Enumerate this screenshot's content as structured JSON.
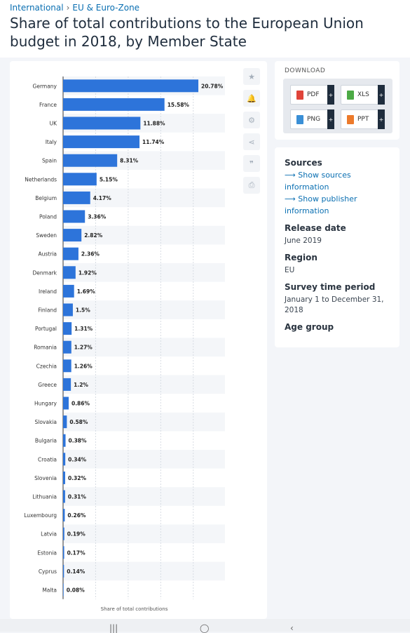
{
  "breadcrumb": {
    "parent": "International",
    "child": "EU & Euro-Zone",
    "separator": "›"
  },
  "title": "Share of total contributions to the European Union budget in 2018, by Member State",
  "chart_data": {
    "type": "bar",
    "orientation": "horizontal",
    "xlabel": "Share of total contributions",
    "grid": true,
    "bar_color": "#2d74da",
    "categories": [
      "Germany",
      "France",
      "UK",
      "Italy",
      "Spain",
      "Netherlands",
      "Belgium",
      "Poland",
      "Sweden",
      "Austria",
      "Denmark",
      "Ireland",
      "Finland",
      "Portugal",
      "Romania",
      "Czechia",
      "Greece",
      "Hungary",
      "Slovakia",
      "Bulgaria",
      "Croatia",
      "Slovenia",
      "Lithuania",
      "Luxembourg",
      "Latvia",
      "Estonia",
      "Cyprus",
      "Malta"
    ],
    "values": [
      20.78,
      15.58,
      11.88,
      11.74,
      8.31,
      5.15,
      4.17,
      3.36,
      2.82,
      2.36,
      1.92,
      1.69,
      1.5,
      1.31,
      1.27,
      1.26,
      1.2,
      0.86,
      0.58,
      0.38,
      0.34,
      0.32,
      0.31,
      0.26,
      0.19,
      0.17,
      0.14,
      0.08
    ],
    "value_labels": [
      "20.78%",
      "15.58%",
      "11.88%",
      "11.74%",
      "8.31%",
      "5.15%",
      "4.17%",
      "3.36%",
      "2.82%",
      "2.36%",
      "1.92%",
      "1.69%",
      "1.5%",
      "1.31%",
      "1.27%",
      "1.26%",
      "1.2%",
      "0.86%",
      "0.58%",
      "0.38%",
      "0.34%",
      "0.32%",
      "0.31%",
      "0.26%",
      "0.19%",
      "0.17%",
      "0.14%",
      "0.08%"
    ],
    "xlim": [
      0,
      25
    ]
  },
  "tools": [
    {
      "name": "star-icon",
      "glyph": "★"
    },
    {
      "name": "bell-icon",
      "glyph": "🔔"
    },
    {
      "name": "gear-icon",
      "glyph": "⚙"
    },
    {
      "name": "share-icon",
      "glyph": "⋖"
    },
    {
      "name": "quote-icon",
      "glyph": "❞"
    },
    {
      "name": "print-icon",
      "glyph": "⎙"
    }
  ],
  "download": {
    "title": "DOWNLOAD",
    "buttons": [
      {
        "label": "PDF",
        "color": "#e0443a"
      },
      {
        "label": "XLS",
        "color": "#4caa45"
      },
      {
        "label": "PNG",
        "color": "#3a8fd6"
      },
      {
        "label": "PPT",
        "color": "#ec7a2b"
      }
    ],
    "plus": "+"
  },
  "info": {
    "sources_heading": "Sources",
    "show_sources": "Show sources information",
    "show_publisher": "Show publisher information",
    "release_heading": "Release date",
    "release_value": "June 2019",
    "region_heading": "Region",
    "region_value": "EU",
    "survey_heading": "Survey time period",
    "survey_value": "January 1 to December 31, 2018",
    "age_heading": "Age group",
    "arrow": "⟶"
  },
  "nav": {
    "recent": "|||",
    "home": "◯",
    "back": "‹"
  }
}
